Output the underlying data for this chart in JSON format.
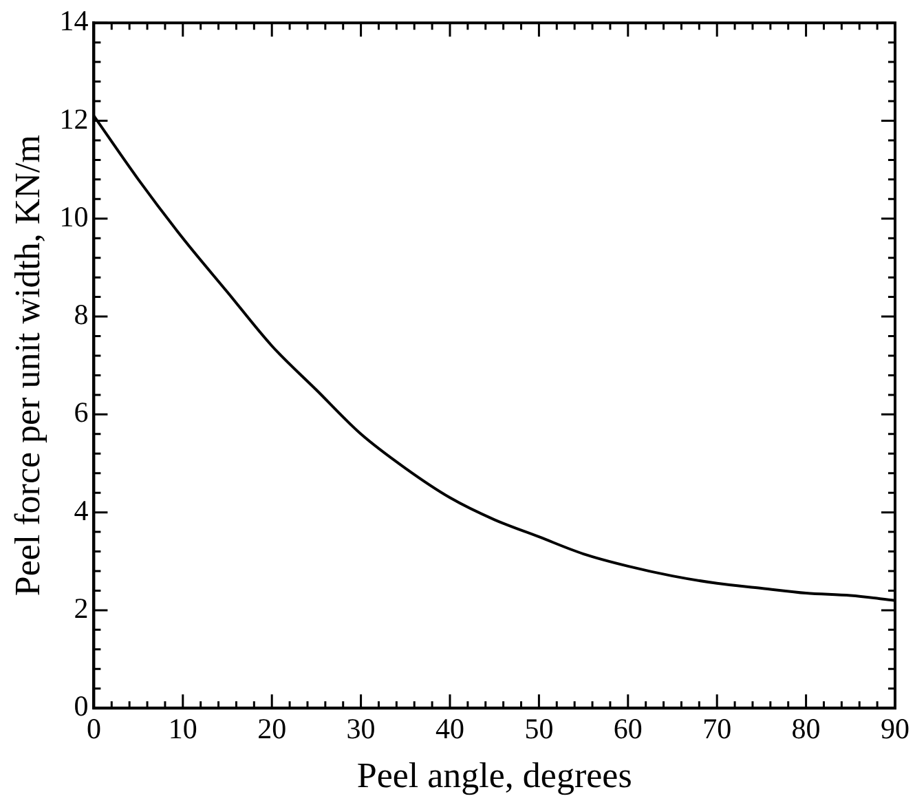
{
  "chart_data": {
    "type": "line",
    "xlabel": "Peel angle, degrees",
    "ylabel": "Peel force per unit width, KN/m",
    "x": [
      0,
      5,
      10,
      15,
      20,
      25,
      30,
      35,
      40,
      45,
      50,
      55,
      60,
      65,
      70,
      75,
      80,
      85,
      90
    ],
    "series": [
      {
        "color": "#000000",
        "values": [
          12.1,
          10.8,
          9.6,
          8.5,
          7.4,
          6.5,
          5.6,
          4.9,
          4.3,
          3.85,
          3.5,
          3.15,
          2.9,
          2.7,
          2.55,
          2.45,
          2.35,
          2.3,
          2.2
        ]
      }
    ],
    "xlim": [
      0,
      90
    ],
    "ylim": [
      0,
      14
    ],
    "xticks": [
      0,
      {
        "value": 2,
        "label": null
      },
      {
        "value": 4,
        "label": null
      },
      {
        "value": 6,
        "label": null
      },
      {
        "value": 8,
        "label": null
      },
      10,
      {
        "value": 12,
        "label": null
      },
      {
        "value": 14,
        "label": null
      },
      {
        "value": 16,
        "label": null
      },
      {
        "value": 18,
        "label": null
      },
      20,
      {
        "value": 22,
        "label": null
      },
      {
        "value": 24,
        "label": null
      },
      {
        "value": 26,
        "label": null
      },
      {
        "value": 28,
        "label": null
      },
      30,
      {
        "value": 32,
        "label": null
      },
      {
        "value": 34,
        "label": null
      },
      {
        "value": 36,
        "label": null
      },
      {
        "value": 38,
        "label": null
      },
      40,
      {
        "value": 42,
        "label": null
      },
      {
        "value": 44,
        "label": null
      },
      {
        "value": 46,
        "label": null
      },
      {
        "value": 48,
        "label": null
      },
      50,
      {
        "value": 52,
        "label": null
      },
      {
        "value": 54,
        "label": null
      },
      {
        "value": 56,
        "label": null
      },
      {
        "value": 58,
        "label": null
      },
      60,
      {
        "value": 62,
        "label": null
      },
      {
        "value": 64,
        "label": null
      },
      {
        "value": 66,
        "label": null
      },
      {
        "value": 68,
        "label": null
      },
      70,
      {
        "value": 72,
        "label": null
      },
      {
        "value": 74,
        "label": null
      },
      {
        "value": 76,
        "label": null
      },
      {
        "value": 78,
        "label": null
      },
      80,
      {
        "value": 82,
        "label": null
      },
      {
        "value": 84,
        "label": null
      },
      {
        "value": 86,
        "label": null
      },
      {
        "value": 88,
        "label": null
      },
      90
    ],
    "yticks": [
      0,
      {
        "value": 0.4,
        "label": null
      },
      {
        "value": 0.8,
        "label": null
      },
      {
        "value": 1.2,
        "label": null
      },
      {
        "value": 1.6,
        "label": null
      },
      2,
      {
        "value": 2.4,
        "label": null
      },
      {
        "value": 2.8,
        "label": null
      },
      {
        "value": 3.2,
        "label": null
      },
      {
        "value": 3.6,
        "label": null
      },
      4,
      {
        "value": 4.4,
        "label": null
      },
      {
        "value": 4.8,
        "label": null
      },
      {
        "value": 5.2,
        "label": null
      },
      {
        "value": 5.6,
        "label": null
      },
      6,
      {
        "value": 6.4,
        "label": null
      },
      {
        "value": 6.8,
        "label": null
      },
      {
        "value": 7.2,
        "label": null
      },
      {
        "value": 7.6,
        "label": null
      },
      8,
      {
        "value": 8.4,
        "label": null
      },
      {
        "value": 8.8,
        "label": null
      },
      {
        "value": 9.2,
        "label": null
      },
      {
        "value": 9.6,
        "label": null
      },
      10,
      {
        "value": 10.4,
        "label": null
      },
      {
        "value": 10.8,
        "label": null
      },
      {
        "value": 11.2,
        "label": null
      },
      {
        "value": 11.6,
        "label": null
      },
      12,
      {
        "value": 12.4,
        "label": null
      },
      {
        "value": 12.8,
        "label": null
      },
      {
        "value": 13.2,
        "label": null
      },
      {
        "value": 13.6,
        "label": null
      },
      14
    ],
    "grid": false,
    "legend": false,
    "marker": "none",
    "line_style": "solid"
  }
}
